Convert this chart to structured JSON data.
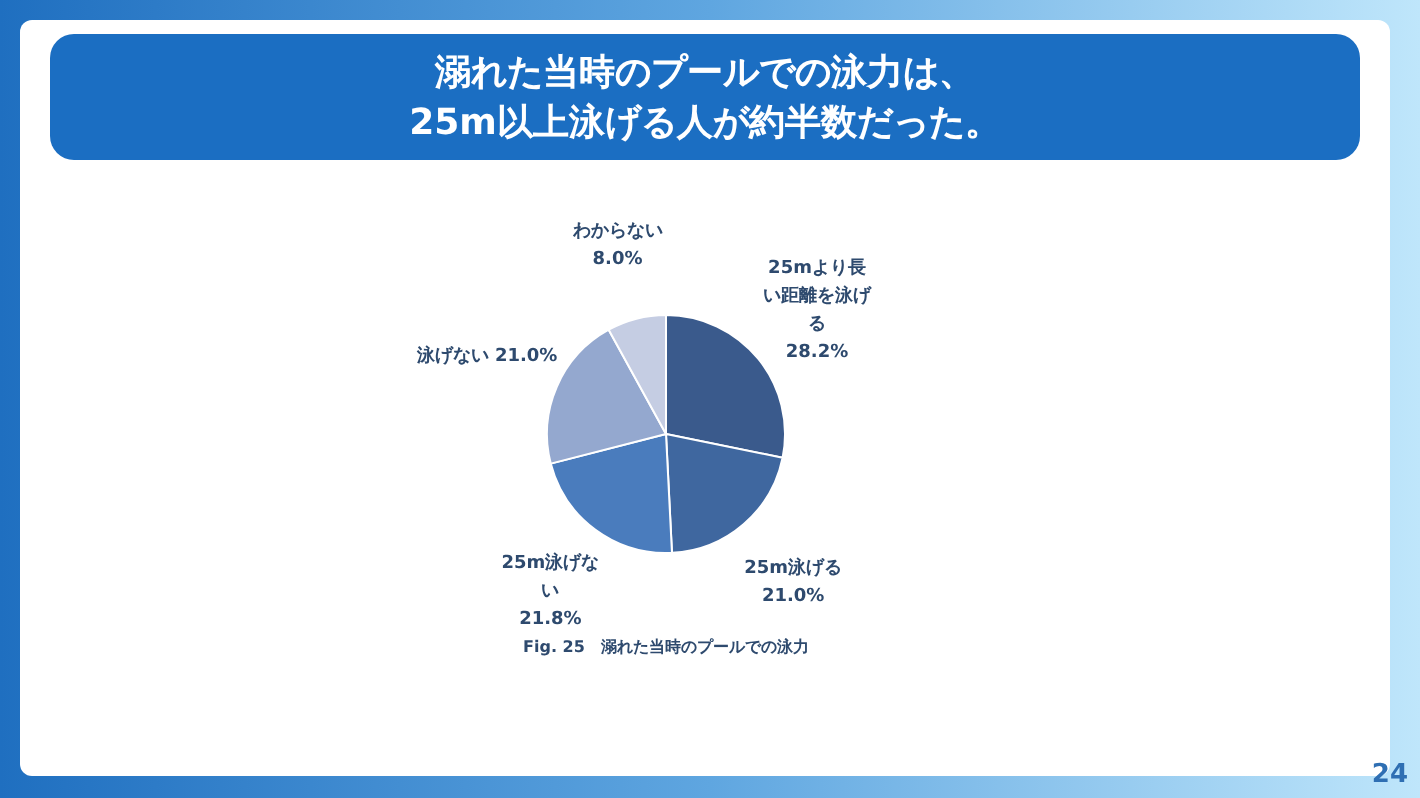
{
  "chart_data": {
    "type": "pie",
    "title": "溺れた当時のプールでの泳力は、\n25m以上泳げる人が約半数だった。",
    "categories": [
      "25mより長い距離を泳げる",
      "25m泳げる",
      "25m泳げない",
      "泳げない",
      "わからない"
    ],
    "values": [
      28.2,
      21.0,
      21.8,
      21.0,
      8.0
    ],
    "value_labels": [
      "28.2%",
      "21.0%",
      "21.8%",
      "21.0%",
      "8.0%"
    ],
    "colors": [
      "#3a5a8c",
      "#3f679f",
      "#4a7cbd",
      "#94a8cf",
      "#c5cde3"
    ],
    "annotations": [
      "Fig. 25　溺れた当時のプールでの泳力",
      "24"
    ]
  }
}
